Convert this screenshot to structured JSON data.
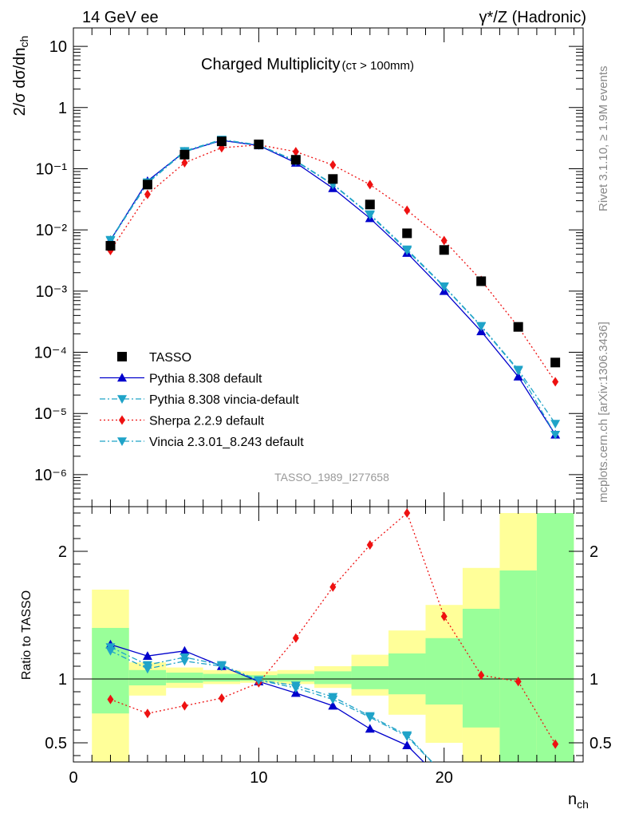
{
  "header": {
    "left": "14 GeV ee",
    "right": "γ*/Z (Hadronic)"
  },
  "side_labels": {
    "rivet": "Rivet 3.1.10, ≥ 1.9M events",
    "mcplots": "mcplots.cern.ch [arXiv:1306.3436]"
  },
  "colors": {
    "TASSO": "#000000",
    "Pythia 8.308 default": "#0000cc",
    "Pythia 8.308 vincia-default": "#1fa3c8",
    "Sherpa 2.2.9 default": "#ee1111",
    "Vincia 2.3.01_8.243 default": "#1fa3c8",
    "band_inner": "#99ff99",
    "band_outer": "#ffff99"
  },
  "chart_data": [
    {
      "type": "line",
      "title": "Charged Multiplicity",
      "subtitle": "(cτ > 100mm)",
      "ylabel": "2/σ dσ/dn_ch",
      "watermark": "TASSO_1989_I277658",
      "yscale": "log",
      "ylim": [
        3e-07,
        20
      ],
      "xlim": [
        0,
        27.5
      ],
      "ytick_labels": [
        "10⁻⁶",
        "10⁻⁵",
        "10⁻⁴",
        "10⁻³",
        "10⁻²",
        "10⁻¹",
        "1",
        "10"
      ],
      "legend_position": "bottom-left",
      "x": [
        2,
        4,
        6,
        8,
        10,
        12,
        14,
        16,
        18,
        20,
        22,
        24,
        26
      ],
      "series": [
        {
          "name": "TASSO",
          "style": "marker",
          "marker": "square",
          "values": [
            0.0055,
            0.055,
            0.17,
            0.28,
            0.25,
            0.14,
            0.068,
            0.026,
            0.0088,
            0.0047,
            0.00145,
            0.00026,
            6.8e-05
          ]
        },
        {
          "name": "Pythia 8.308 default",
          "style": "solid",
          "marker": "triangle-up",
          "values": [
            0.0068,
            0.063,
            0.19,
            0.29,
            0.24,
            0.125,
            0.048,
            0.0155,
            0.0042,
            0.001,
            0.00022,
            4e-05,
            4.5e-06
          ]
        },
        {
          "name": "Pythia 8.308 vincia-default",
          "style": "dashdot",
          "marker": "triangle-down",
          "values": [
            0.0069,
            0.06,
            0.195,
            0.3,
            0.245,
            0.135,
            0.056,
            0.018,
            0.0048,
            0.0012,
            0.00027,
            5.2e-05,
            6.8e-06
          ]
        },
        {
          "name": "Sherpa 2.2.9 default",
          "style": "dotted",
          "marker": "diamond",
          "values": [
            0.0046,
            0.038,
            0.125,
            0.22,
            0.245,
            0.19,
            0.115,
            0.055,
            0.021,
            0.0067,
            0.0015,
            0.00026,
            3.3e-05
          ]
        },
        {
          "name": "Vincia 2.3.01_8.243 default",
          "style": "dashdot",
          "marker": "triangle-down",
          "values": [
            0.0067,
            0.058,
            0.188,
            0.295,
            0.243,
            0.132,
            0.055,
            0.0175,
            0.0046,
            0.00118,
            0.000265,
            5e-05,
            4.5e-06
          ]
        }
      ]
    },
    {
      "type": "line",
      "ylabel": "Ratio to TASSO",
      "xlabel": "n_ch",
      "xlim": [
        0,
        27.5
      ],
      "ylim": [
        0.35,
        2.35
      ],
      "xtick_labels": [
        "0",
        "10",
        "20"
      ],
      "ytick_labels": [
        "0.5",
        "1",
        "2"
      ],
      "x": [
        2,
        4,
        6,
        8,
        10,
        12,
        14,
        16,
        18,
        20,
        22,
        24,
        26
      ],
      "uncertainty_bands": {
        "bin_edges": [
          1,
          3,
          5,
          7,
          9,
          11,
          13,
          15,
          17,
          19,
          21,
          23,
          25,
          27
        ],
        "inner_low": [
          0.73,
          0.95,
          0.97,
          0.98,
          0.985,
          0.98,
          0.96,
          0.92,
          0.88,
          0.8,
          0.62,
          0.3,
          0.3
        ],
        "inner_high": [
          1.4,
          1.07,
          1.05,
          1.04,
          1.03,
          1.04,
          1.06,
          1.1,
          1.2,
          1.32,
          1.55,
          1.85,
          2.3
        ],
        "outer_low": [
          0.2,
          0.87,
          0.93,
          0.96,
          0.97,
          0.96,
          0.93,
          0.87,
          0.72,
          0.5,
          0.3,
          0.3,
          0.3
        ],
        "outer_high": [
          1.7,
          1.13,
          1.09,
          1.07,
          1.06,
          1.07,
          1.1,
          1.19,
          1.38,
          1.58,
          1.87,
          2.3,
          2.3
        ]
      },
      "series": [
        {
          "name": "Pythia 8.308 default",
          "values": [
            1.27,
            1.18,
            1.22,
            1.1,
            0.98,
            0.89,
            0.79,
            0.61,
            0.48,
            0.19,
            null,
            null,
            null
          ]
        },
        {
          "name": "Pythia 8.308 vincia-default",
          "values": [
            1.25,
            1.11,
            1.17,
            1.11,
            0.99,
            0.95,
            0.86,
            0.71,
            0.56,
            0.25,
            null,
            null,
            null
          ]
        },
        {
          "name": "Sherpa 2.2.9 default",
          "values": [
            0.84,
            0.73,
            0.79,
            0.85,
            0.97,
            1.32,
            1.72,
            2.05,
            2.3,
            1.49,
            1.03,
            0.98,
            0.49
          ]
        },
        {
          "name": "Vincia 2.3.01_8.243 default",
          "values": [
            1.22,
            1.08,
            1.14,
            1.1,
            0.99,
            0.93,
            0.84,
            0.7,
            0.55,
            0.25,
            null,
            null,
            null
          ]
        }
      ]
    }
  ]
}
